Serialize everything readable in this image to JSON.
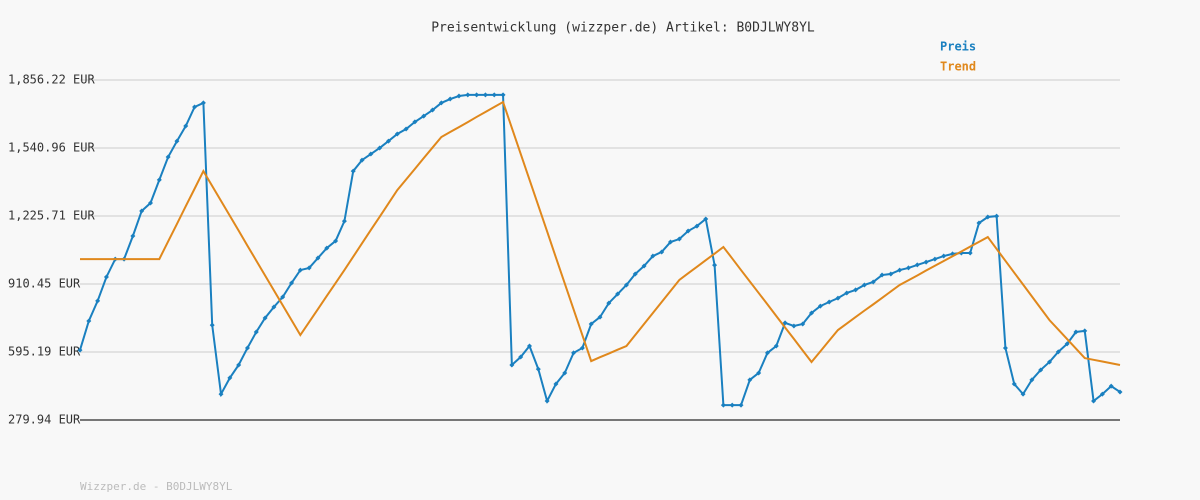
{
  "chart_data": {
    "type": "line",
    "title": "Preisentwicklung (wizzper.de) Artikel: B0DJLWY8YL",
    "footer": "Wizzper.de - B0DJLWY8YL",
    "ylim": [
      279.94,
      1856.22
    ],
    "yticks": [
      {
        "value": 279.94,
        "label": "279.94 EUR"
      },
      {
        "value": 595.19,
        "label": "595.19 EUR"
      },
      {
        "value": 910.45,
        "label": "910.45 EUR"
      },
      {
        "value": 1225.71,
        "label": "1,225.71 EUR"
      },
      {
        "value": 1540.96,
        "label": "1,540.96 EUR"
      },
      {
        "value": 1856.22,
        "label": "1,856.22 EUR"
      }
    ],
    "grid": true,
    "legend": "top-right",
    "series": [
      {
        "name": "Preis",
        "color": "#1a80c0",
        "markers": true,
        "values": [
          604,
          739,
          832,
          943,
          1026,
          1026,
          1133,
          1249,
          1286,
          1393,
          1499,
          1573,
          1643,
          1731,
          1750,
          720,
          400,
          475,
          535,
          614,
          688,
          753,
          804,
          850,
          915,
          975,
          985,
          1031,
          1077,
          1110,
          1202,
          1434,
          1485,
          1513,
          1541,
          1573,
          1606,
          1629,
          1662,
          1689,
          1717,
          1750,
          1768,
          1782,
          1787,
          1787,
          1787,
          1787,
          1787,
          535,
          572,
          623,
          516,
          368,
          447,
          498,
          591,
          614,
          725,
          757,
          822,
          864,
          906,
          957,
          994,
          1040,
          1059,
          1105,
          1119,
          1156,
          1179,
          1212,
          998,
          349,
          349,
          349,
          466,
          498,
          591,
          623,
          730,
          716,
          725,
          776,
          808,
          827,
          845,
          869,
          883,
          906,
          920,
          952,
          957,
          975,
          985,
          999,
          1012,
          1026,
          1040,
          1050,
          1054,
          1054,
          1193,
          1221,
          1225,
          614,
          447,
          400,
          466,
          512,
          549,
          596,
          633,
          688,
          693,
          368,
          400,
          437,
          410
        ]
      },
      {
        "name": "Trend",
        "color": "#e0881c",
        "markers": false,
        "values": [
          1026,
          1026,
          1026,
          1026,
          1026,
          1026,
          1026,
          1026,
          1026,
          1026,
          1108,
          1189,
          1271,
          1352,
          1434,
          1365,
          1296,
          1227,
          1158,
          1088,
          1019,
          950,
          881,
          812,
          743,
          674,
          734,
          794,
          855,
          915,
          975,
          1037,
          1099,
          1161,
          1222,
          1284,
          1346,
          1395,
          1444,
          1494,
          1543,
          1592,
          1615,
          1638,
          1661,
          1685,
          1708,
          1731,
          1754,
          1634,
          1514,
          1394,
          1274,
          1154,
          1033,
          913,
          793,
          673,
          553,
          571,
          588,
          606,
          623,
          674,
          725,
          776,
          827,
          878,
          929,
          960,
          990,
          1021,
          1051,
          1082,
          1029,
          975,
          922,
          869,
          816,
          762,
          709,
          656,
          602,
          549,
          598,
          648,
          697,
          727,
          757,
          787,
          816,
          846,
          876,
          906,
          928,
          950,
          973,
          995,
          1017,
          1039,
          1061,
          1084,
          1106,
          1128,
          1073,
          1018,
          963,
          908,
          853,
          798,
          743,
          699,
          655,
          611,
          567,
          559,
          551,
          543,
          535
        ]
      }
    ]
  }
}
